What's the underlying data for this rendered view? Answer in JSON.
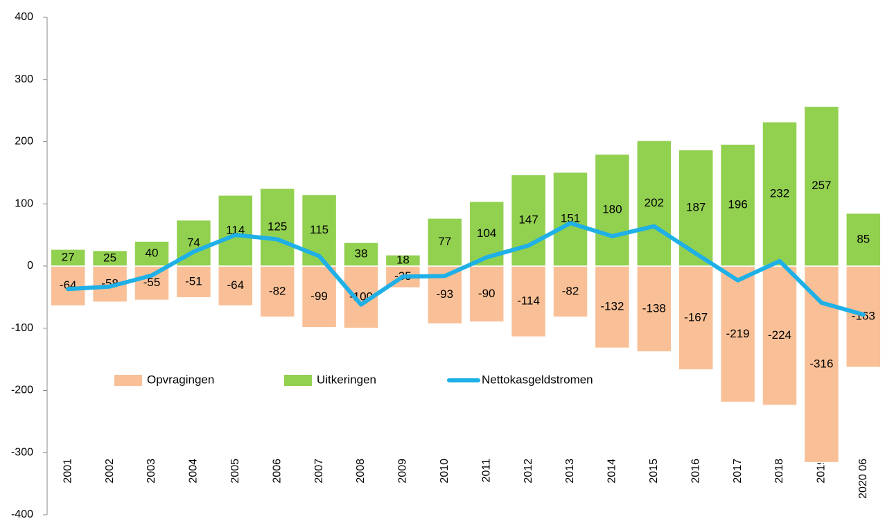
{
  "chart_data": {
    "type": "bar",
    "categories": [
      "2001",
      "2002",
      "2003",
      "2004",
      "2005",
      "2006",
      "2007",
      "2008",
      "2009",
      "2010",
      "2011",
      "2012",
      "2013",
      "2014",
      "2015",
      "2016",
      "2017",
      "2018",
      "2019",
      "2020 06"
    ],
    "series": [
      {
        "name": "Opvragingen",
        "color": "#f9c097",
        "type": "bar",
        "values": [
          -64,
          -58,
          -55,
          -51,
          -64,
          -82,
          -99,
          -100,
          -35,
          -93,
          -90,
          -114,
          -82,
          -132,
          -138,
          -167,
          -219,
          -224,
          -316,
          -163
        ]
      },
      {
        "name": "Uitkeringen",
        "color": "#92d050",
        "type": "bar",
        "values": [
          27,
          25,
          40,
          74,
          114,
          125,
          115,
          38,
          18,
          77,
          104,
          147,
          151,
          180,
          202,
          187,
          196,
          232,
          257,
          85
        ]
      },
      {
        "name": "Nettokasgeldstromen",
        "color": "#1eb0e6",
        "type": "line",
        "values": [
          -37,
          -33,
          -15,
          23,
          50,
          43,
          16,
          -62,
          -17,
          -16,
          14,
          33,
          69,
          48,
          64,
          20,
          -23,
          8,
          -59,
          -78
        ]
      }
    ],
    "ylim": [
      -400,
      400
    ],
    "yticks": [
      -400,
      -300,
      -200,
      -100,
      0,
      100,
      200,
      300,
      400
    ],
    "grid": false
  }
}
